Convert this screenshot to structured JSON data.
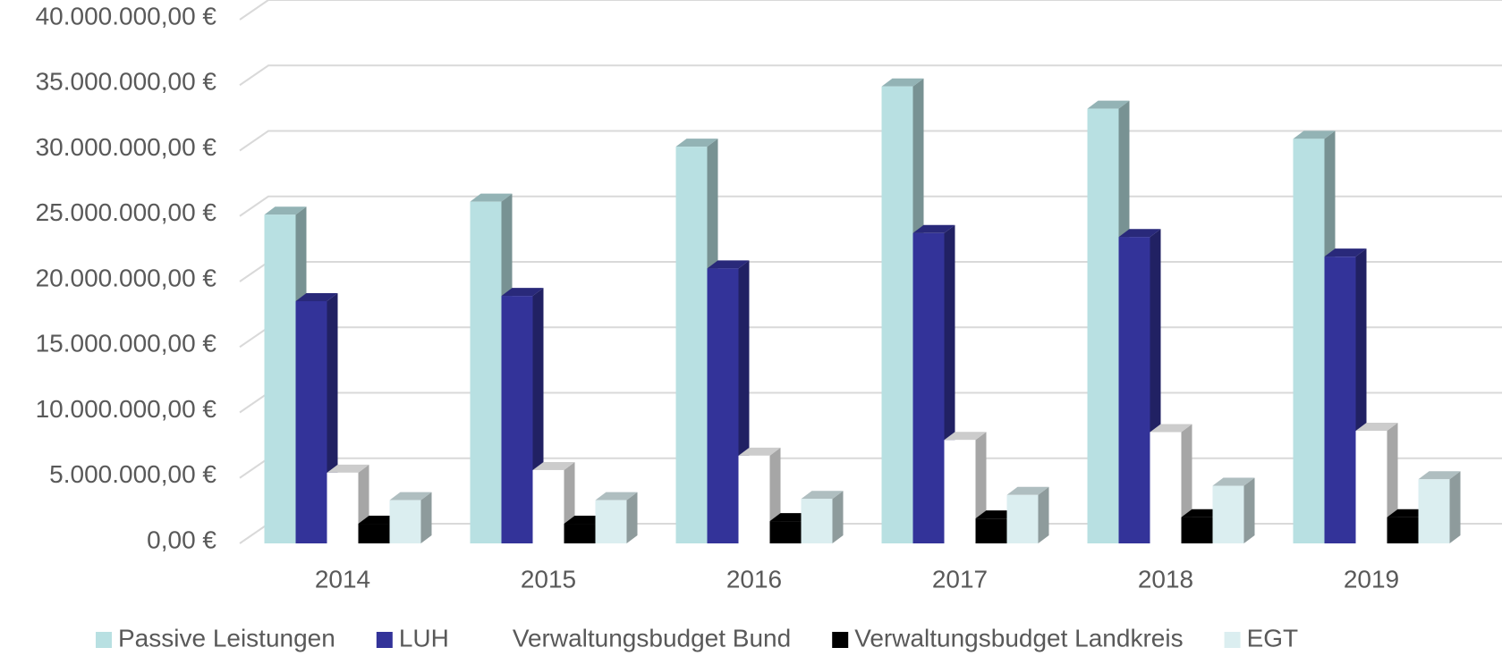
{
  "chart_data": {
    "type": "bar3d",
    "categories": [
      "2014",
      "2015",
      "2016",
      "2017",
      "2018",
      "2019"
    ],
    "series": [
      {
        "name": "Passive Leistungen",
        "color": "#b8e0e2",
        "values": [
          25100000,
          26100000,
          30300000,
          34900000,
          33200000,
          30900000
        ]
      },
      {
        "name": "LUH",
        "color": "#333399",
        "values": [
          18500000,
          18900000,
          21000000,
          23700000,
          23400000,
          21900000
        ]
      },
      {
        "name": "Verwaltungsbudget Bund",
        "color": "#ffffff",
        "values": [
          5400000,
          5600000,
          6700000,
          7900000,
          8500000,
          8600000
        ]
      },
      {
        "name": "Verwaltungsbudget Landkreis",
        "color": "#000000",
        "values": [
          1500000,
          1500000,
          1700000,
          1900000,
          2000000,
          2000000
        ]
      },
      {
        "name": "EGT",
        "color": "#dbeef0",
        "values": [
          3300000,
          3300000,
          3400000,
          3700000,
          4400000,
          4900000
        ]
      }
    ],
    "ylim": [
      0,
      40000000
    ],
    "yticks": [
      {
        "value": 0,
        "label": "0,00 €"
      },
      {
        "value": 5000000,
        "label": "5.000.000,00 €"
      },
      {
        "value": 10000000,
        "label": "10.000.000,00 €"
      },
      {
        "value": 15000000,
        "label": "15.000.000,00 €"
      },
      {
        "value": 20000000,
        "label": "20.000.000,00 €"
      },
      {
        "value": 25000000,
        "label": "25.000.000,00 €"
      },
      {
        "value": 30000000,
        "label": "30.000.000,00 €"
      },
      {
        "value": 35000000,
        "label": "35.000.000,00 €"
      },
      {
        "value": 40000000,
        "label": "40.000.000,00 €"
      }
    ],
    "grid": true,
    "legend": "bottom"
  }
}
